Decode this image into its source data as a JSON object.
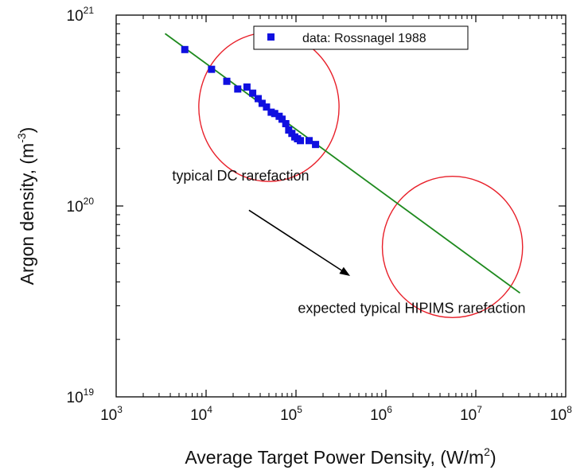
{
  "chart_data": {
    "type": "scatter",
    "x_scale": "log",
    "y_scale": "log",
    "xlim": [
      1000,
      100000000
    ],
    "ylim": [
      1e+19,
      1e+21
    ],
    "x_ticks": [
      {
        "base": "10",
        "exp": "3",
        "value": 1000
      },
      {
        "base": "10",
        "exp": "4",
        "value": 10000
      },
      {
        "base": "10",
        "exp": "5",
        "value": 100000
      },
      {
        "base": "10",
        "exp": "6",
        "value": 1000000
      },
      {
        "base": "10",
        "exp": "7",
        "value": 10000000
      },
      {
        "base": "10",
        "exp": "8",
        "value": 100000000
      }
    ],
    "y_ticks": [
      {
        "base": "10",
        "exp": "19",
        "value": 1e+19
      },
      {
        "base": "10",
        "exp": "20",
        "value": 1e+20
      },
      {
        "base": "10",
        "exp": "21",
        "value": 1e+21
      }
    ],
    "xlabel": {
      "text": "Average Target Power Density, (W/m",
      "sup": "2",
      "close": ")"
    },
    "ylabel": {
      "text": "Argon density, (m",
      "sup": "-3",
      "close": ")"
    },
    "series": [
      {
        "name": "data: Rossnagel 1988",
        "marker": "square",
        "color": "#1010e0",
        "x": [
          5800,
          11500,
          17000,
          22500,
          28500,
          33000,
          38000,
          42000,
          47000,
          53000,
          58000,
          65000,
          70000,
          77000,
          83000,
          90000,
          97000,
          104000,
          112000,
          140000,
          165000
        ],
        "y": [
          6.6e+20,
          5.2e+20,
          4.5e+20,
          4.1e+20,
          4.2e+20,
          3.9e+20,
          3.65e+20,
          3.45e+20,
          3.3e+20,
          3.1e+20,
          3.05e+20,
          2.95e+20,
          2.85e+20,
          2.7e+20,
          2.5e+20,
          2.4e+20,
          2.3e+20,
          2.25e+20,
          2.2e+20,
          2.2e+20,
          2.1e+20
        ]
      }
    ],
    "fit_line": {
      "color": "#1e8a1e",
      "x": [
        3500,
        31000000
      ],
      "y": [
        8e+20,
        3.5e+19
      ]
    },
    "ellipses": [
      {
        "color": "#e8202a",
        "cx": 50000,
        "cy": 3.3e+20,
        "rx_decades": 0.78,
        "ry_decades": 0.39
      },
      {
        "color": "#e8202a",
        "cx": 5500000,
        "cy": 6.1e+19,
        "rx_decades": 0.78,
        "ry_decades": 0.37
      }
    ],
    "arrow": {
      "color": "#000000",
      "from": [
        30000,
        9.5e+19
      ],
      "to": [
        400000,
        4.3e+19
      ]
    },
    "annotations": [
      {
        "text": "typical DC rarefaction",
        "x": 4200,
        "y": 1.36e+20
      },
      {
        "text": "expected typical HIPIMS rarefaction",
        "x": 105000,
        "y": 2.75e+19
      }
    ],
    "legend_position": "top-center",
    "grid": false
  }
}
